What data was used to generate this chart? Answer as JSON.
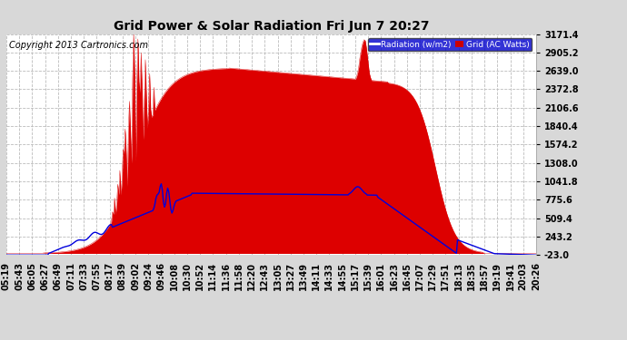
{
  "title": "Grid Power & Solar Radiation Fri Jun 7 20:27",
  "copyright": "Copyright 2013 Cartronics.com",
  "background_color": "#d8d8d8",
  "plot_bg_color": "#ffffff",
  "y_min": -23.0,
  "y_max": 3171.4,
  "yticks": [
    -23.0,
    243.2,
    509.4,
    775.6,
    1041.8,
    1308.0,
    1574.2,
    1840.4,
    2106.6,
    2372.8,
    2639.0,
    2905.2,
    3171.4
  ],
  "ytick_labels": [
    "-23.0",
    "243.2",
    "509.4",
    "775.6",
    "1041.8",
    "1308.0",
    "1574.2",
    "1840.4",
    "2106.6",
    "2372.8",
    "2639.0",
    "2905.2",
    "3171.4"
  ],
  "radiation_color": "#dd0000",
  "grid_color": "#0000dd",
  "legend_radiation_label": "Radiation (w/m2)",
  "legend_grid_label": "Grid (AC Watts)",
  "legend_rad_bg": "#0000cc",
  "legend_grid_bg": "#cc0000",
  "grid_line_color": "#bbbbbb",
  "title_fontsize": 10,
  "tick_fontsize": 7,
  "copyright_fontsize": 7,
  "x_ticks_labels": [
    "05:19",
    "05:43",
    "06:05",
    "06:27",
    "06:49",
    "07:11",
    "07:33",
    "07:55",
    "08:17",
    "08:39",
    "09:02",
    "09:24",
    "09:46",
    "10:08",
    "10:30",
    "10:52",
    "11:14",
    "11:36",
    "11:58",
    "12:20",
    "12:43",
    "13:05",
    "13:27",
    "13:49",
    "14:11",
    "14:33",
    "14:55",
    "15:17",
    "15:39",
    "16:01",
    "16:23",
    "16:45",
    "17:07",
    "17:29",
    "17:51",
    "18:13",
    "18:35",
    "18:57",
    "19:19",
    "19:41",
    "20:03",
    "20:26"
  ]
}
